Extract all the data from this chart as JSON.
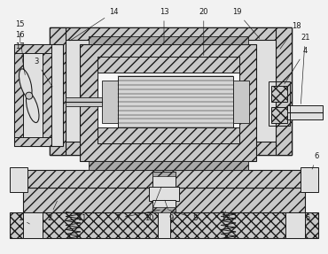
{
  "bg": "#f2f2f2",
  "black": "#1a1a1a",
  "gray1": "#c8c8c8",
  "gray2": "#e0e0e0",
  "gray3": "#a8a8a8",
  "white": "#f8f8f8",
  "label_fs": 6.0
}
